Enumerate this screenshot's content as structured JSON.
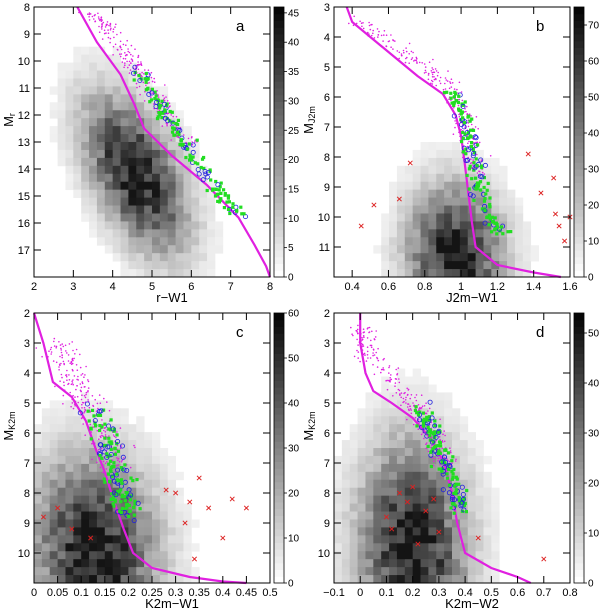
{
  "colors": {
    "sequence": "#e020e0",
    "sample_green": "#22dd22",
    "sample_blue": "#2020dd",
    "sample_red": "#dd2222",
    "density_gray": "#000000"
  },
  "chart_data": [
    {
      "type": "scatter",
      "panel_label": "a",
      "xlabel": "r−W1",
      "ylabel": "M",
      "ylabel_sub": "r",
      "xlim": [
        2,
        8
      ],
      "ylim": [
        18,
        8
      ],
      "y_inverted": true,
      "xticks": [
        2,
        3,
        4,
        5,
        6,
        7,
        8
      ],
      "yticks": [
        9,
        10,
        11,
        12,
        13,
        14,
        15,
        16,
        17
      ],
      "x_tick_labels": [
        "2",
        "3",
        "4",
        "5",
        "6",
        "7",
        "8"
      ],
      "y_tick_labels": [
        "8",
        "9",
        "10",
        "11",
        "12",
        "13",
        "14",
        "15",
        "16",
        "17"
      ],
      "y_label_ticks": [
        8,
        9,
        10,
        11,
        12,
        13,
        14,
        15,
        16,
        17
      ],
      "colorbar": {
        "min": 0,
        "max": 46,
        "ticks": [
          0,
          5,
          10,
          15,
          20,
          25,
          30,
          35,
          40,
          45
        ],
        "tick_labels": [
          "0",
          "5",
          "10",
          "15",
          "20",
          "25",
          "30",
          "35",
          "40",
          "45"
        ]
      },
      "density": {
        "center_x": 4.6,
        "center_y": 14.2,
        "spread_x": 0.9,
        "spread_y": 1.7,
        "tilt": 0.6
      },
      "sequence_line": [
        [
          3.1,
          8.0
        ],
        [
          3.6,
          9.3
        ],
        [
          4.2,
          10.5
        ],
        [
          4.55,
          11.6
        ],
        [
          4.8,
          12.5
        ],
        [
          5.5,
          13.5
        ],
        [
          6.4,
          14.6
        ],
        [
          7.2,
          15.8
        ],
        [
          7.6,
          16.8
        ],
        [
          7.9,
          17.6
        ],
        [
          8.0,
          18.0
        ]
      ],
      "locus": [
        [
          3.45,
          8.2
        ],
        [
          3.9,
          8.9
        ],
        [
          4.4,
          9.9
        ],
        [
          4.9,
          10.9
        ],
        [
          5.4,
          12.1
        ],
        [
          5.95,
          13.3
        ],
        [
          6.6,
          14.6
        ],
        [
          7.2,
          15.7
        ]
      ],
      "locus_width": 0.22,
      "magenta_region": {
        "x": [
          3.3,
          7.7
        ],
        "y_min": 8.0,
        "y_max": 16.0
      },
      "outliers": []
    },
    {
      "type": "scatter",
      "panel_label": "b",
      "xlabel": "J2m−W1",
      "ylabel": "M",
      "ylabel_sub": "J2m",
      "xlim": [
        0.3,
        1.6
      ],
      "ylim": [
        12,
        3
      ],
      "y_inverted": true,
      "xticks": [
        0.4,
        0.6,
        0.8,
        1.0,
        1.2,
        1.4,
        1.6
      ],
      "yticks": [
        3,
        4,
        5,
        6,
        7,
        8,
        9,
        10,
        11
      ],
      "x_tick_labels": [
        "0.4",
        "0.6",
        "0.8",
        "1",
        "1.2",
        "1.4",
        "1.6"
      ],
      "y_tick_labels": [
        "3",
        "4",
        "5",
        "6",
        "7",
        "8",
        "9",
        "10",
        "11"
      ],
      "y_label_ticks": [
        3,
        4,
        5,
        6,
        7,
        8,
        9,
        10,
        11
      ],
      "colorbar": {
        "min": 0,
        "max": 75,
        "ticks": [
          0,
          10,
          20,
          30,
          40,
          50,
          60,
          70
        ],
        "tick_labels": [
          "0",
          "10",
          "20",
          "30",
          "40",
          "50",
          "60",
          "70"
        ]
      },
      "density": {
        "center_x": 0.97,
        "center_y": 11.3,
        "spread_x": 0.18,
        "spread_y": 1.6,
        "tilt": 0.05
      },
      "sequence_line": [
        [
          0.37,
          3.0
        ],
        [
          0.4,
          3.5
        ],
        [
          0.5,
          4.0
        ],
        [
          0.62,
          4.6
        ],
        [
          0.76,
          5.3
        ],
        [
          0.9,
          5.9
        ],
        [
          0.97,
          6.6
        ],
        [
          1.0,
          7.3
        ],
        [
          1.02,
          8.2
        ],
        [
          1.04,
          9.2
        ],
        [
          1.06,
          10.2
        ],
        [
          1.08,
          11.0
        ],
        [
          1.2,
          11.6
        ],
        [
          1.4,
          11.85
        ],
        [
          1.55,
          12.0
        ]
      ],
      "locus": [
        [
          0.45,
          3.5
        ],
        [
          0.65,
          4.4
        ],
        [
          0.85,
          5.2
        ],
        [
          0.98,
          6.0
        ],
        [
          1.03,
          7.0
        ],
        [
          1.06,
          8.0
        ],
        [
          1.1,
          9.0
        ],
        [
          1.16,
          10.0
        ],
        [
          1.22,
          10.5
        ]
      ],
      "locus_width": 0.05,
      "magenta_region": {
        "x": [
          0.4,
          1.3
        ],
        "y_min": 3.0,
        "y_max": 9.5
      },
      "outliers": [
        [
          1.37,
          7.9
        ],
        [
          1.51,
          8.7
        ],
        [
          1.44,
          9.2
        ],
        [
          1.52,
          9.9
        ],
        [
          1.6,
          10.0
        ],
        [
          1.57,
          10.8
        ],
        [
          1.54,
          10.3
        ],
        [
          0.72,
          8.2
        ],
        [
          0.52,
          9.6
        ],
        [
          0.45,
          10.3
        ],
        [
          0.66,
          9.4
        ]
      ]
    },
    {
      "type": "scatter",
      "panel_label": "c",
      "xlabel": "K2m−W1",
      "ylabel": "M",
      "ylabel_sub": "K2m",
      "xlim": [
        0,
        0.5
      ],
      "ylim": [
        11,
        2
      ],
      "y_inverted": true,
      "xticks": [
        0,
        0.05,
        0.1,
        0.15,
        0.2,
        0.25,
        0.3,
        0.35,
        0.4,
        0.45,
        0.5
      ],
      "yticks": [
        2,
        3,
        4,
        5,
        6,
        7,
        8,
        9,
        10
      ],
      "x_tick_labels": [
        "0",
        "0.05",
        "0.1",
        "0.15",
        "0.2",
        "0.25",
        "0.3",
        "0.35",
        "0.4",
        "0.45",
        "0.5"
      ],
      "y_tick_labels": [
        "2",
        "3",
        "4",
        "5",
        "6",
        "7",
        "8",
        "9",
        "10"
      ],
      "y_label_ticks": [
        2,
        3,
        4,
        5,
        6,
        7,
        8,
        9,
        10
      ],
      "colorbar": {
        "min": 0,
        "max": 60,
        "ticks": [
          0,
          10,
          20,
          30,
          40,
          50,
          60
        ],
        "tick_labels": [
          "0",
          "10",
          "20",
          "30",
          "40",
          "50",
          "60"
        ]
      },
      "density": {
        "center_x": 0.13,
        "center_y": 10.0,
        "spread_x": 0.09,
        "spread_y": 2.2,
        "tilt": 0.1
      },
      "sequence_line": [
        [
          0.0,
          2.0
        ],
        [
          0.02,
          3.0
        ],
        [
          0.04,
          4.3
        ],
        [
          0.08,
          4.8
        ],
        [
          0.11,
          5.6
        ],
        [
          0.13,
          6.5
        ],
        [
          0.15,
          7.3
        ],
        [
          0.17,
          8.3
        ],
        [
          0.19,
          9.2
        ],
        [
          0.21,
          10.0
        ],
        [
          0.25,
          10.5
        ],
        [
          0.33,
          10.8
        ],
        [
          0.4,
          10.95
        ],
        [
          0.45,
          11.0
        ]
      ],
      "locus": [
        [
          0.05,
          3.0
        ],
        [
          0.08,
          4.0
        ],
        [
          0.11,
          5.0
        ],
        [
          0.15,
          6.0
        ],
        [
          0.17,
          7.0
        ],
        [
          0.19,
          8.0
        ],
        [
          0.2,
          8.8
        ]
      ],
      "locus_width": 0.03,
      "magenta_region": {
        "x": [
          0.03,
          0.22
        ],
        "y_min": 2.2,
        "y_max": 8.5
      },
      "outliers": [
        [
          0.3,
          8.0
        ],
        [
          0.33,
          8.3
        ],
        [
          0.35,
          7.5
        ],
        [
          0.37,
          8.5
        ],
        [
          0.42,
          8.2
        ],
        [
          0.4,
          9.5
        ],
        [
          0.32,
          9.0
        ],
        [
          0.28,
          7.9
        ],
        [
          0.34,
          10.2
        ],
        [
          0.45,
          8.5
        ],
        [
          0.05,
          8.5
        ],
        [
          0.08,
          9.2
        ],
        [
          0.02,
          8.8
        ],
        [
          0.12,
          9.5
        ]
      ]
    },
    {
      "type": "scatter",
      "panel_label": "d",
      "xlabel": "K2m−W2",
      "ylabel": "M",
      "ylabel_sub": "K2m",
      "xlim": [
        -0.1,
        0.8
      ],
      "ylim": [
        11,
        2
      ],
      "y_inverted": true,
      "xticks": [
        -0.1,
        0,
        0.1,
        0.2,
        0.3,
        0.4,
        0.5,
        0.6,
        0.7,
        0.8
      ],
      "yticks": [
        2,
        3,
        4,
        5,
        6,
        7,
        8,
        9,
        10
      ],
      "x_tick_labels": [
        "−0.1",
        "0",
        "0.1",
        "0.2",
        "0.3",
        "0.4",
        "0.5",
        "0.6",
        "0.7",
        "0.8"
      ],
      "y_tick_labels": [
        "2",
        "3",
        "4",
        "5",
        "6",
        "7",
        "8",
        "9",
        "10"
      ],
      "y_label_ticks": [
        2,
        3,
        4,
        5,
        6,
        7,
        8,
        9,
        10
      ],
      "colorbar": {
        "min": 0,
        "max": 54,
        "ticks": [
          0,
          10,
          20,
          30,
          40,
          50
        ],
        "tick_labels": [
          "0",
          "10",
          "20",
          "30",
          "40",
          "50"
        ]
      },
      "density": {
        "center_x": 0.2,
        "center_y": 9.8,
        "spread_x": 0.14,
        "spread_y": 2.4,
        "tilt": 0.05
      },
      "sequence_line": [
        [
          0.0,
          2.0
        ],
        [
          0.0,
          3.0
        ],
        [
          0.02,
          4.0
        ],
        [
          0.05,
          4.6
        ],
        [
          0.12,
          5.0
        ],
        [
          0.2,
          5.5
        ],
        [
          0.27,
          6.2
        ],
        [
          0.32,
          7.0
        ],
        [
          0.35,
          8.0
        ],
        [
          0.37,
          9.0
        ],
        [
          0.4,
          10.0
        ],
        [
          0.5,
          10.5
        ],
        [
          0.6,
          10.8
        ],
        [
          0.65,
          11.0
        ]
      ],
      "locus": [
        [
          0.0,
          2.5
        ],
        [
          0.05,
          3.5
        ],
        [
          0.2,
          5.0
        ],
        [
          0.28,
          6.0
        ],
        [
          0.32,
          7.0
        ],
        [
          0.36,
          8.0
        ],
        [
          0.38,
          8.6
        ]
      ],
      "locus_width": 0.04,
      "magenta_region": {
        "x": [
          -0.02,
          0.4
        ],
        "y_min": 2.2,
        "y_max": 7.5
      },
      "outliers": [
        [
          0.15,
          8.0
        ],
        [
          0.18,
          8.3
        ],
        [
          0.2,
          7.8
        ],
        [
          0.25,
          8.6
        ],
        [
          0.3,
          9.3
        ],
        [
          0.22,
          9.7
        ],
        [
          0.12,
          9.2
        ],
        [
          0.1,
          8.8
        ],
        [
          0.45,
          9.5
        ],
        [
          0.28,
          8.2
        ],
        [
          0.7,
          10.2
        ]
      ]
    }
  ]
}
